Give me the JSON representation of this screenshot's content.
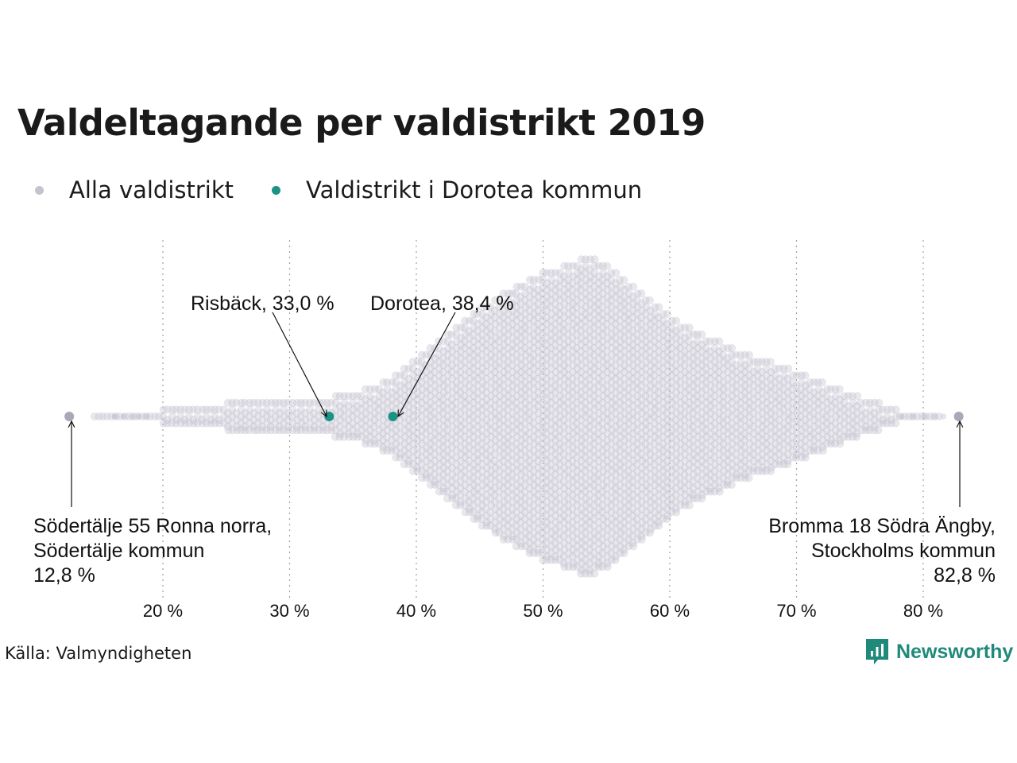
{
  "title": "Valdeltagande per valdistrikt 2019",
  "legend": [
    {
      "label": "Alla valdistrikt",
      "color": "#c4c3d0"
    },
    {
      "label": "Valdistrikt i Dorotea kommun",
      "color": "#1a9384"
    }
  ],
  "source": "Källa: Valmyndigheten",
  "brand": "Newsworthy",
  "colors": {
    "base": "#c4c3d0",
    "highlight": "#1a9384",
    "extreme": "#a9a8b8",
    "grid": "#a0a0a0"
  },
  "chart_data": {
    "type": "scatter",
    "title": "Valdeltagande per valdistrikt 2019",
    "xlabel": "",
    "ylabel": "",
    "xlim": [
      12,
      84
    ],
    "x_ticks": [
      20,
      30,
      40,
      50,
      60,
      70,
      80
    ],
    "x_tick_labels": [
      "20 %",
      "30 %",
      "40 %",
      "50 %",
      "60 %",
      "70 %",
      "80 %"
    ],
    "grid": "vertical dotted",
    "series": [
      {
        "name": "Alla valdistrikt",
        "distribution": "beeswarm",
        "min": 12.8,
        "max": 82.8,
        "mode": 53.8
      },
      {
        "name": "Valdistrikt i Dorotea kommun",
        "points": [
          {
            "label": "Risbäck, 33,0 %",
            "x": 33.0
          },
          {
            "label": "Dorotea, 38,4 %",
            "x": 38.4
          }
        ]
      }
    ],
    "annotations": [
      {
        "lines": [
          "Risbäck, 33,0 %"
        ],
        "x": 33.0
      },
      {
        "lines": [
          "Dorotea, 38,4 %"
        ],
        "x": 38.4
      },
      {
        "lines": [
          "Södertälje 55 Ronna norra,",
          "Södertälje kommun",
          "12,8 %"
        ],
        "x": 12.8
      },
      {
        "lines": [
          "Bromma 18 Södra Ängby,",
          "Stockholms kommun",
          "82,8 %"
        ],
        "x": 82.8
      }
    ]
  }
}
